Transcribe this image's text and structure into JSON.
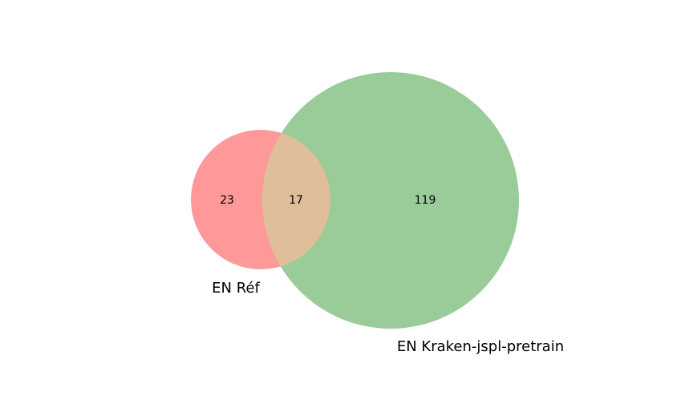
{
  "diagram": {
    "type": "venn2",
    "sets": [
      {
        "label": "EN Réf",
        "color": "#ff9999",
        "size": 40
      },
      {
        "label": "EN Kraken-jspl-pretrain",
        "color": "#99cc99",
        "size": 136
      }
    ],
    "intersection_color": "#e0be99",
    "regions": {
      "only_a": "23",
      "a_and_b": "17",
      "only_b": "119"
    }
  }
}
